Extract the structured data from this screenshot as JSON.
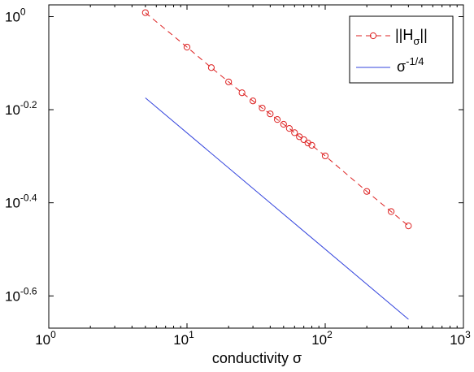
{
  "chart_data": {
    "type": "line",
    "xscale": "log",
    "yscale": "log",
    "xlim": [
      1,
      1000
    ],
    "ylim": [
      0.214,
      1.06
    ],
    "xlabel": "conductivity σ",
    "ylabel": "",
    "grid": false,
    "legend_position": "top-right",
    "x_ticks": [
      {
        "base": "10",
        "exp": "0",
        "value": 1
      },
      {
        "base": "10",
        "exp": "1",
        "value": 10
      },
      {
        "base": "10",
        "exp": "2",
        "value": 100
      },
      {
        "base": "10",
        "exp": "3",
        "value": 1000
      }
    ],
    "y_ticks": [
      {
        "base": "10",
        "exp": "0",
        "value": 1
      },
      {
        "base": "10",
        "exp": "-0.2",
        "value": 0.631
      },
      {
        "base": "10",
        "exp": "-0.4",
        "value": 0.398
      },
      {
        "base": "10",
        "exp": "-0.6",
        "value": 0.251
      }
    ],
    "series": [
      {
        "name": "||H_σ||",
        "legend_main": "||H",
        "legend_sub": "σ",
        "legend_tail": "||",
        "color": "#dd2222",
        "style": "dashed",
        "marker": "circle",
        "x": [
          5,
          10,
          15,
          20,
          25,
          30,
          35,
          40,
          45,
          50,
          55,
          60,
          65,
          70,
          75,
          80,
          100,
          200,
          300,
          400
        ],
        "y": [
          1.02,
          0.86,
          0.777,
          0.724,
          0.686,
          0.659,
          0.636,
          0.618,
          0.601,
          0.587,
          0.575,
          0.563,
          0.552,
          0.544,
          0.535,
          0.529,
          0.502,
          0.421,
          0.381,
          0.355
        ]
      },
      {
        "name": "σ^(-1/4)",
        "legend_main": "σ",
        "legend_sup": "-1/4",
        "color": "#3344dd",
        "style": "solid",
        "marker": "none",
        "x": [
          5,
          400
        ],
        "y": [
          0.669,
          0.2236
        ]
      }
    ]
  }
}
